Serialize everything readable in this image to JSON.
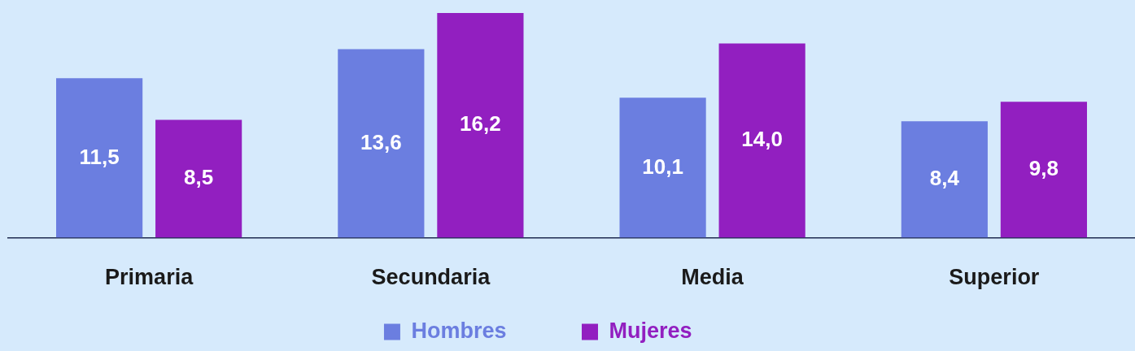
{
  "chart_data": {
    "type": "bar",
    "categories": [
      "Primaria",
      "Secundaria",
      "Media",
      "Superior"
    ],
    "series": [
      {
        "name": "Hombres",
        "color": "#6b7ee0",
        "values": [
          11.5,
          13.6,
          10.1,
          8.4
        ],
        "value_labels": [
          "11,5",
          "13,6",
          "10,1",
          "8,4"
        ]
      },
      {
        "name": "Mujeres",
        "color": "#921fc0",
        "values": [
          8.5,
          16.2,
          14.0,
          9.8
        ],
        "value_labels": [
          "8,5",
          "16,2",
          "14,0",
          "9,8"
        ]
      }
    ],
    "legend": "bottom"
  }
}
